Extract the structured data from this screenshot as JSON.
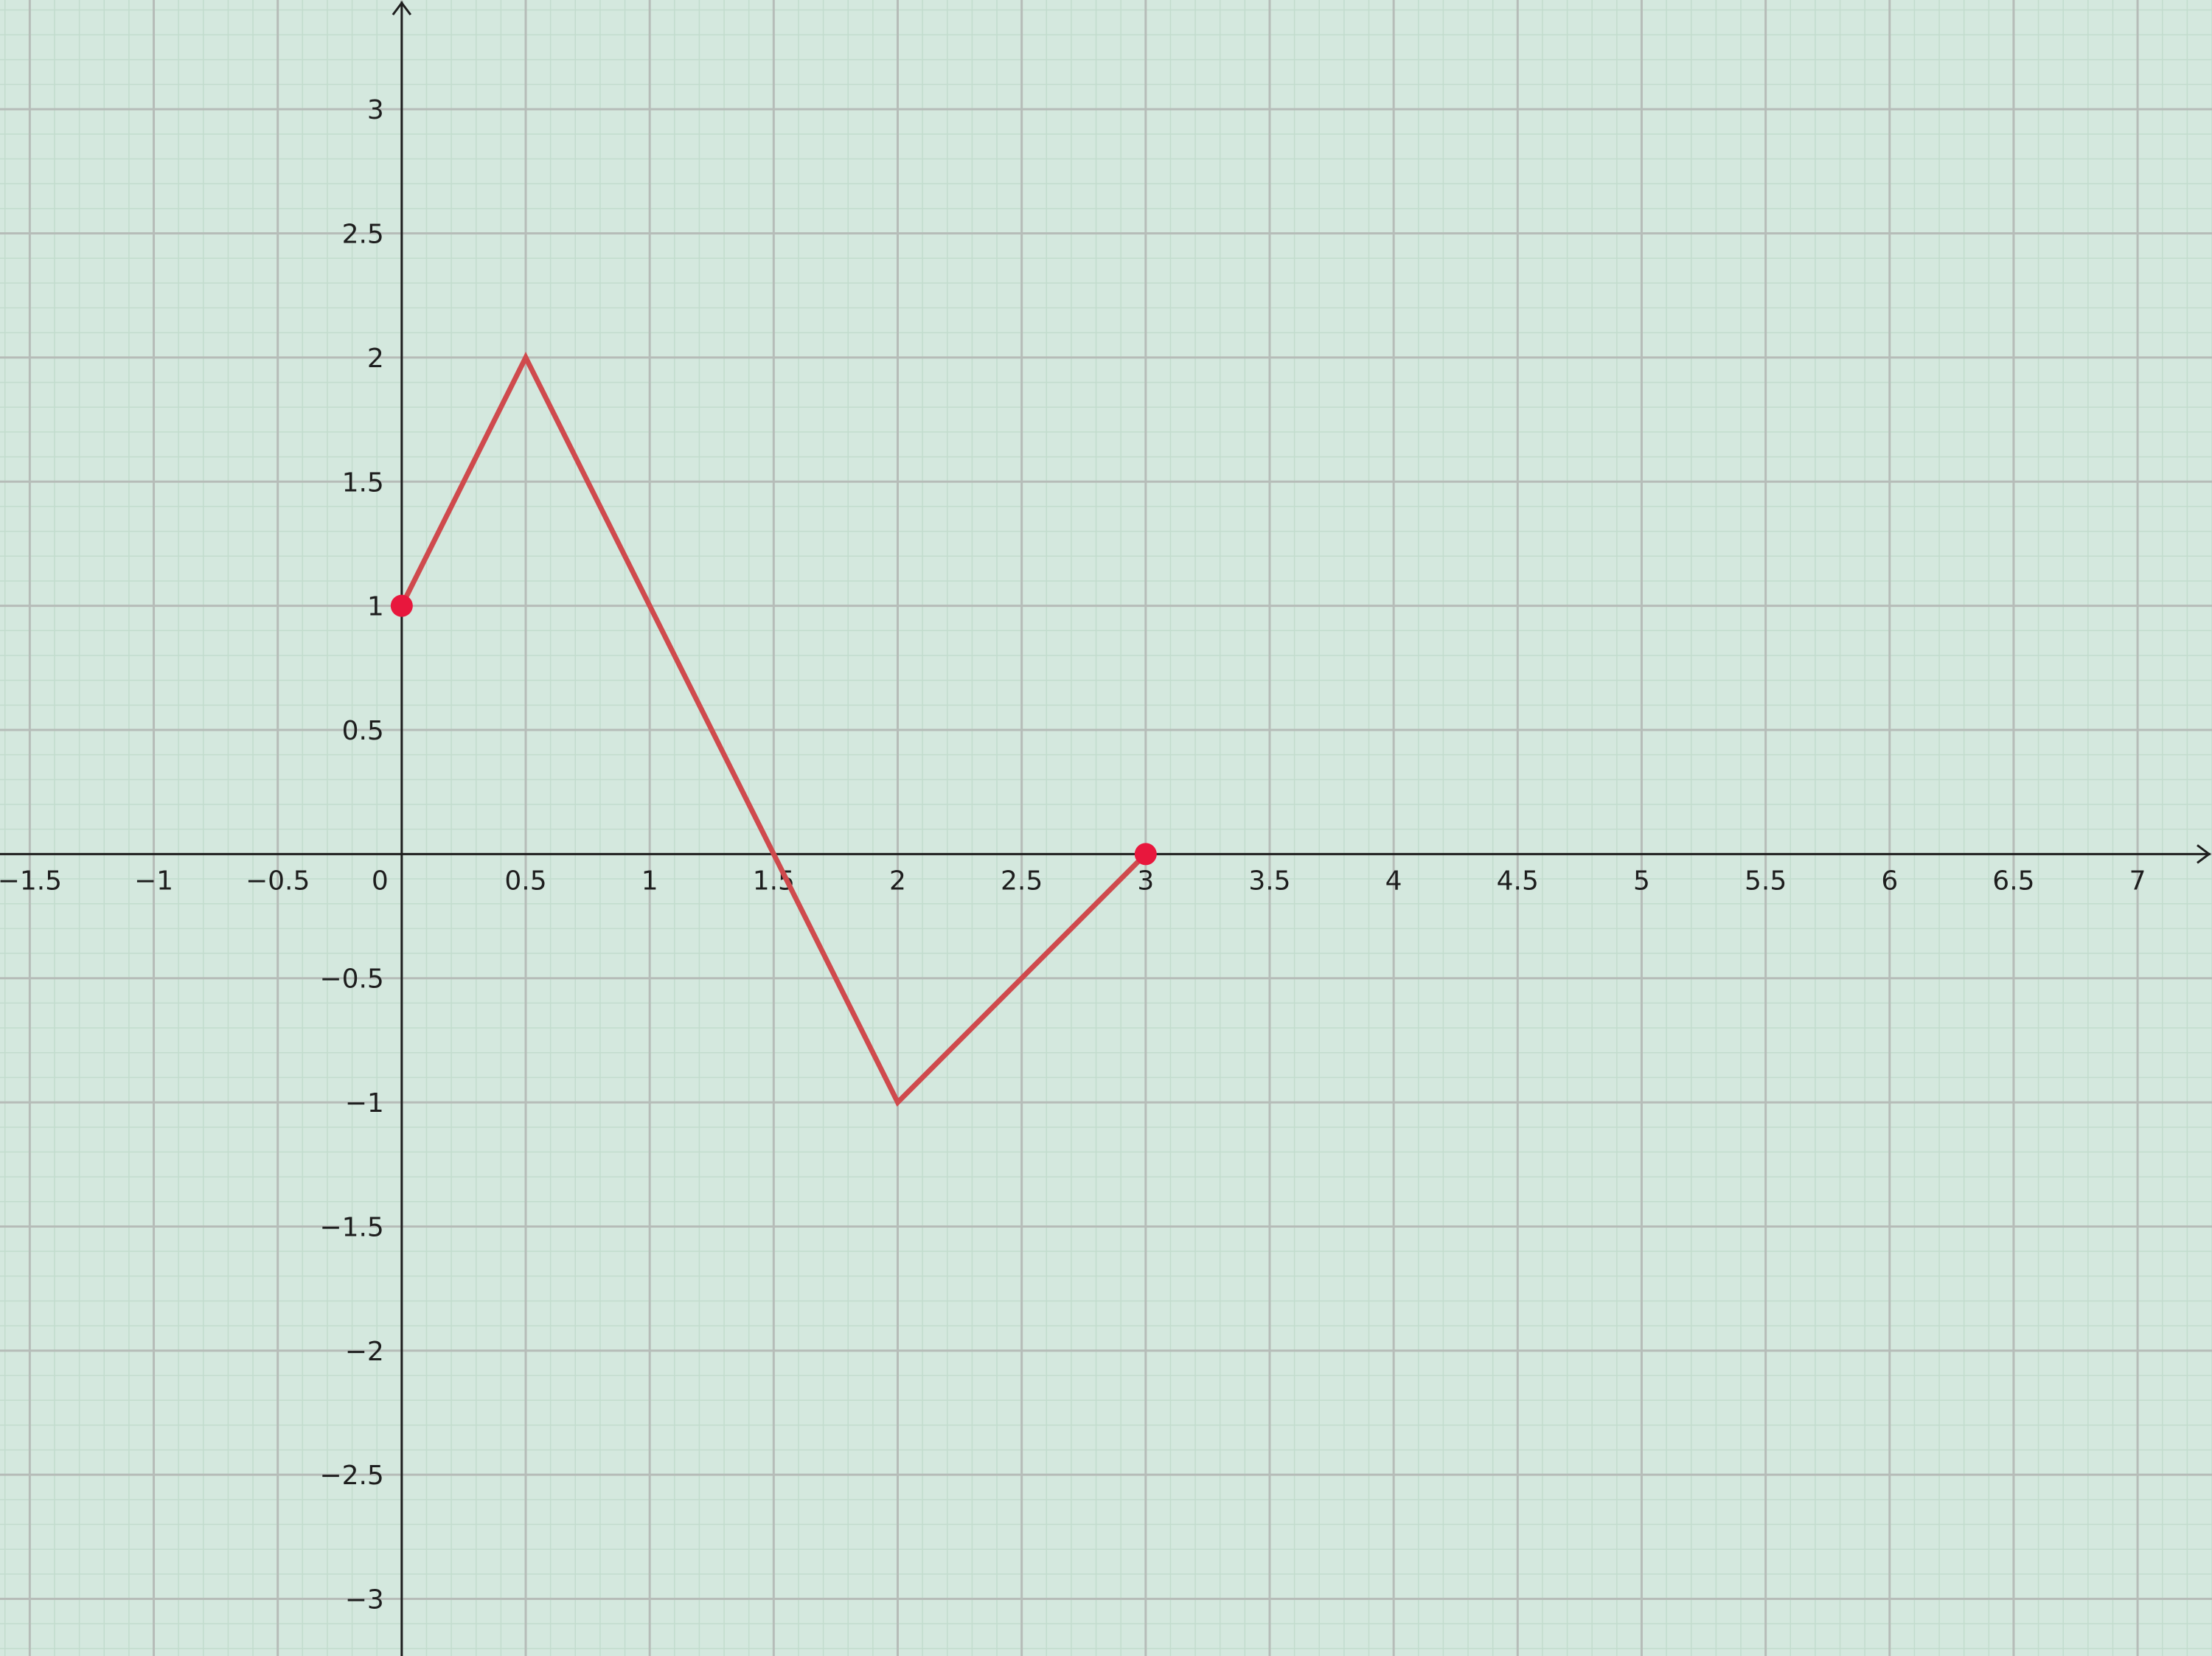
{
  "chart_data": {
    "type": "line",
    "title": "",
    "xlabel": "",
    "ylabel": "",
    "xlim": [
      -1.62,
      7.3
    ],
    "ylim": [
      -3.23,
      3.44
    ],
    "grid": true,
    "grid_major_step": 0.5,
    "grid_minor_step": 0.1,
    "x_ticks": [
      -1.5,
      -1,
      -0.5,
      0,
      0.5,
      1,
      1.5,
      2,
      2.5,
      3,
      3.5,
      4,
      4.5,
      5,
      5.5,
      6,
      6.5,
      7
    ],
    "x_tick_labels": [
      "−1.5",
      "−1",
      "−0.5",
      "0",
      "0.5",
      "1",
      "1.5",
      "2",
      "2.5",
      "3",
      "3.5",
      "4",
      "4.5",
      "5",
      "5.5",
      "6",
      "6.5",
      "7"
    ],
    "y_ticks": [
      3,
      2.5,
      2,
      1.5,
      1,
      0.5,
      -0.5,
      -1,
      -1.5,
      -2,
      -2.5,
      -3
    ],
    "y_tick_labels": [
      "3",
      "2.5",
      "2",
      "1.5",
      "1",
      "0.5",
      "−0.5",
      "−1",
      "−1.5",
      "−2",
      "−2.5",
      "−3"
    ],
    "series": [
      {
        "x": [
          0,
          0.5,
          2,
          3
        ],
        "y": [
          1,
          2,
          -1,
          0
        ],
        "color": "#cf4a4d"
      }
    ],
    "points": [
      {
        "x": 0,
        "y": 1,
        "color": "#e8173d"
      },
      {
        "x": 3,
        "y": 0,
        "color": "#e8173d"
      }
    ],
    "colors": {
      "background": "#d4e8de",
      "axis": "#1e1e1e"
    }
  }
}
